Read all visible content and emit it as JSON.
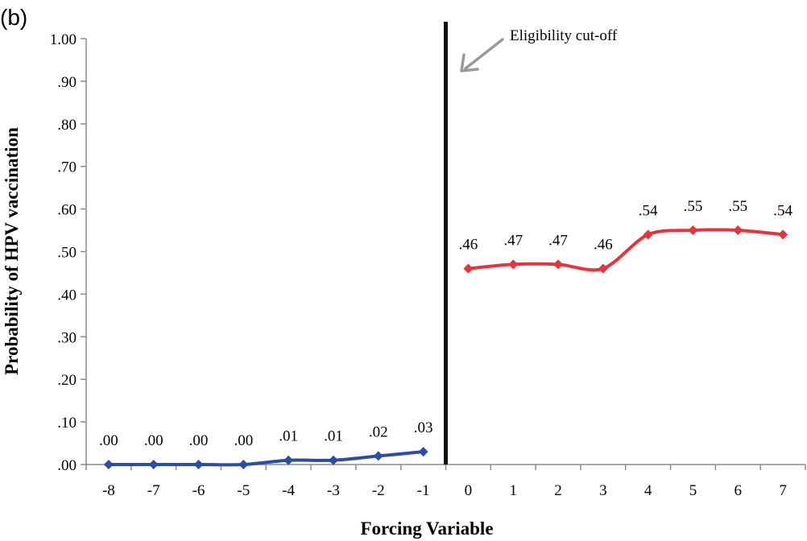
{
  "panel_label": "(b)",
  "chart_data": {
    "type": "line",
    "title": "",
    "xlabel": "Forcing Variable",
    "ylabel": "Probability of HPV vaccination",
    "x": [
      -8,
      -7,
      -6,
      -5,
      -4,
      -3,
      -2,
      -1,
      0,
      1,
      2,
      3,
      4,
      5,
      6,
      7
    ],
    "xlim": [
      -8.5,
      7.5
    ],
    "ylim": [
      0,
      1.0
    ],
    "y_ticks": [
      ".00",
      ".10",
      ".20",
      ".30",
      ".40",
      ".50",
      ".60",
      ".70",
      ".80",
      ".90",
      "1.00"
    ],
    "x_ticks": [
      "-8",
      "-7",
      "-6",
      "-5",
      "-4",
      "-3",
      "-2",
      "-1",
      "0",
      "1",
      "2",
      "3",
      "4",
      "5",
      "6",
      "7"
    ],
    "grid": false,
    "legend": "none",
    "series": [
      {
        "color": "#2a4ea5",
        "x": [
          -8,
          -7,
          -6,
          -5,
          -4,
          -3,
          -2,
          -1
        ],
        "values": [
          0.0,
          0.0,
          0.0,
          0.0,
          0.01,
          0.01,
          0.02,
          0.03
        ],
        "labels": [
          ".00",
          ".00",
          ".00",
          ".00",
          ".01",
          ".01",
          ".02",
          ".03"
        ]
      },
      {
        "color": "#e8323c",
        "x": [
          0,
          1,
          2,
          3,
          4,
          5,
          6,
          7
        ],
        "values": [
          0.46,
          0.47,
          0.47,
          0.46,
          0.54,
          0.55,
          0.55,
          0.54
        ],
        "labels": [
          ".46",
          ".47",
          ".47",
          ".46",
          ".54",
          ".55",
          ".55",
          ".54"
        ]
      }
    ],
    "cutoff": {
      "x": -0.5,
      "color": "#111111",
      "annotation": "Eligibility cut-off",
      "arrow_color": "#9a9a9a"
    },
    "axis_color": "#8c8c8c"
  }
}
